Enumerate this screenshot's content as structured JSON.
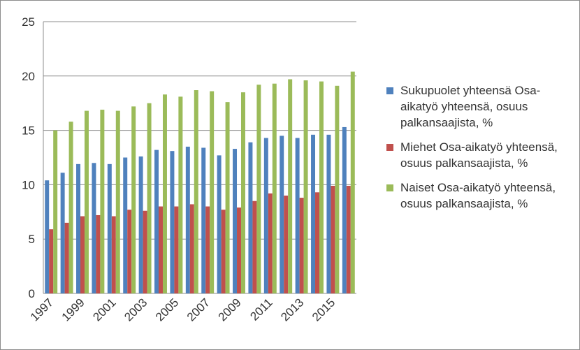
{
  "chart_data": {
    "type": "bar",
    "categories": [
      "1997",
      null,
      "1999",
      null,
      "2001",
      null,
      "2003",
      null,
      "2005",
      null,
      "2007",
      null,
      "2009",
      null,
      "2011",
      null,
      "2013",
      null,
      "2015",
      null
    ],
    "series": [
      {
        "name": "Sukupuolet yhteensä Osa-aikatyö yhteensä, osuus palkansaajista, %",
        "color": "#4f81bd",
        "values": [
          10.4,
          11.1,
          11.9,
          12.0,
          11.9,
          12.5,
          12.6,
          13.2,
          13.1,
          13.5,
          13.4,
          12.7,
          13.3,
          13.9,
          14.3,
          14.5,
          14.3,
          14.6,
          14.6,
          15.3
        ]
      },
      {
        "name": "Miehet Osa-aikatyö yhteensä, osuus palkansaajista, %",
        "color": "#c0504d",
        "values": [
          5.9,
          6.5,
          7.1,
          7.2,
          7.1,
          7.7,
          7.6,
          8.0,
          8.0,
          8.2,
          8.0,
          7.7,
          7.9,
          8.5,
          9.2,
          9.0,
          8.8,
          9.3,
          9.9,
          9.9
        ]
      },
      {
        "name": "Naiset Osa-aikatyö yhteensä, osuus palkansaajista, %",
        "color": "#9bbb59",
        "values": [
          15.0,
          15.8,
          16.8,
          16.9,
          16.8,
          17.2,
          17.5,
          18.3,
          18.1,
          18.7,
          18.6,
          17.6,
          18.5,
          19.2,
          19.3,
          19.7,
          19.6,
          19.5,
          19.1,
          20.4
        ]
      }
    ],
    "ylim": [
      0,
      25
    ],
    "yticks": [
      0,
      5,
      10,
      15,
      20,
      25
    ],
    "grid": true,
    "legend": "right"
  }
}
